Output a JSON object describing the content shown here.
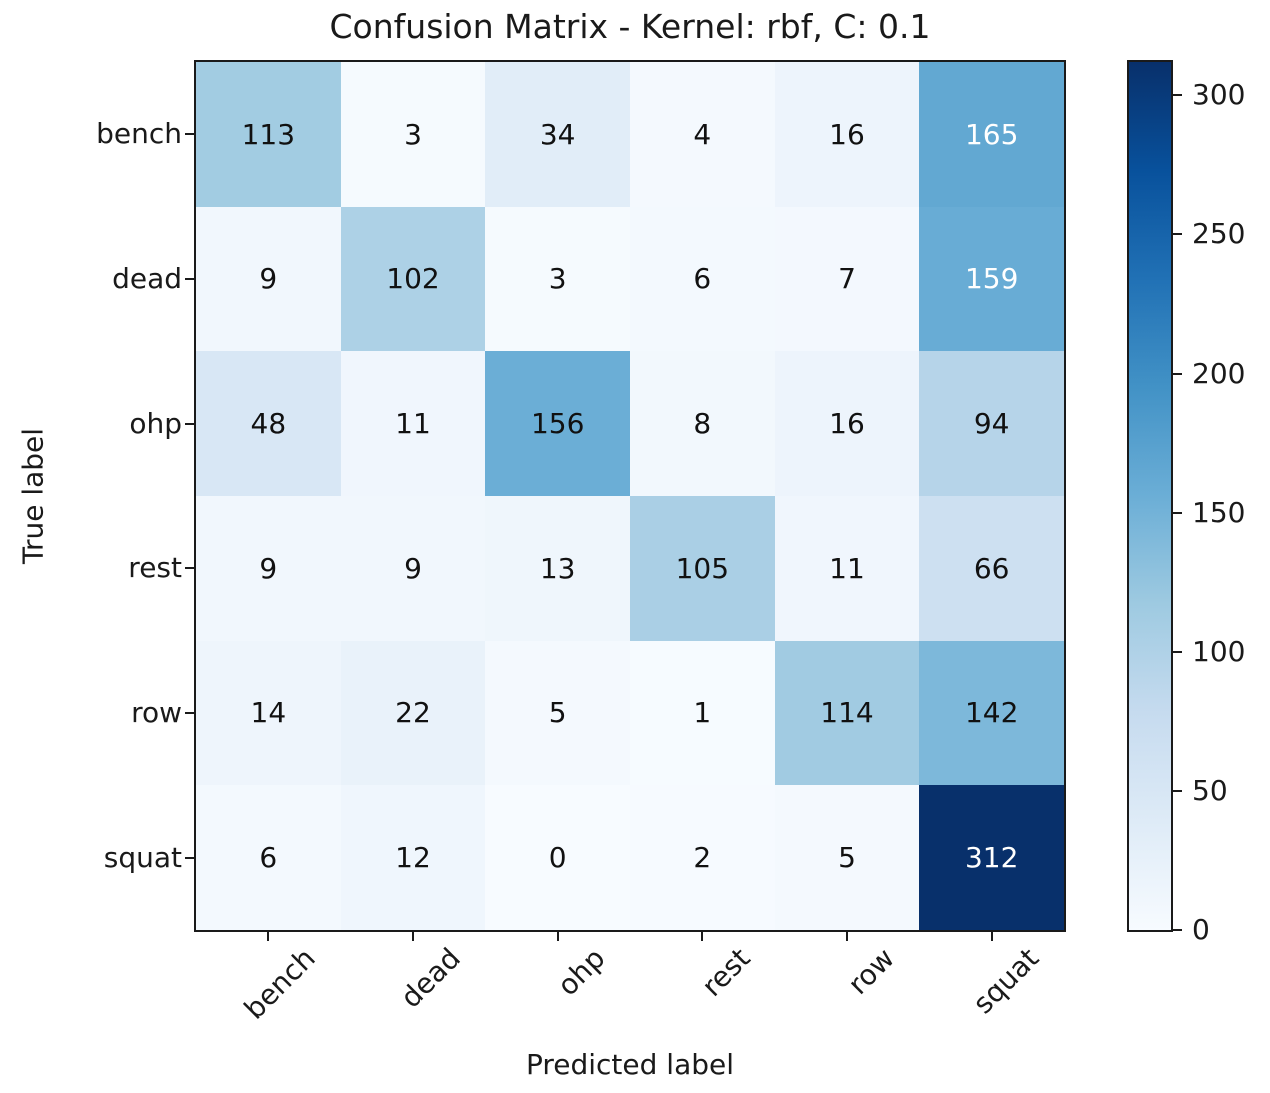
{
  "chart_data": {
    "type": "heatmap",
    "title": "Confusion Matrix - Kernel: rbf, C: 0.1",
    "xlabel": "Predicted label",
    "ylabel": "True label",
    "x_categories": [
      "bench",
      "dead",
      "ohp",
      "rest",
      "row",
      "squat"
    ],
    "y_categories": [
      "bench",
      "dead",
      "ohp",
      "rest",
      "row",
      "squat"
    ],
    "matrix": [
      [
        113,
        3,
        34,
        4,
        16,
        165
      ],
      [
        9,
        102,
        3,
        6,
        7,
        159
      ],
      [
        48,
        11,
        156,
        8,
        16,
        94
      ],
      [
        9,
        9,
        13,
        105,
        11,
        66
      ],
      [
        14,
        22,
        5,
        1,
        114,
        142
      ],
      [
        6,
        12,
        0,
        2,
        5,
        312
      ]
    ],
    "vmin": 0,
    "vmax": 312,
    "colormap": "Blues",
    "colormap_stops": [
      "#f7fbff",
      "#deebf7",
      "#c6dbef",
      "#9ecae1",
      "#6baed6",
      "#4292c6",
      "#2171b5",
      "#08519c",
      "#08306b"
    ],
    "colorbar_ticks": [
      0,
      50,
      100,
      150,
      200,
      250,
      300
    ],
    "colorbar_position": "right",
    "annotation_color_dark": "#111111",
    "annotation_color_light": "#ffffff",
    "axis_color": "#1a1a1a",
    "background_color": "#ffffff",
    "grid": false,
    "x_tick_rotation_deg": 45
  }
}
